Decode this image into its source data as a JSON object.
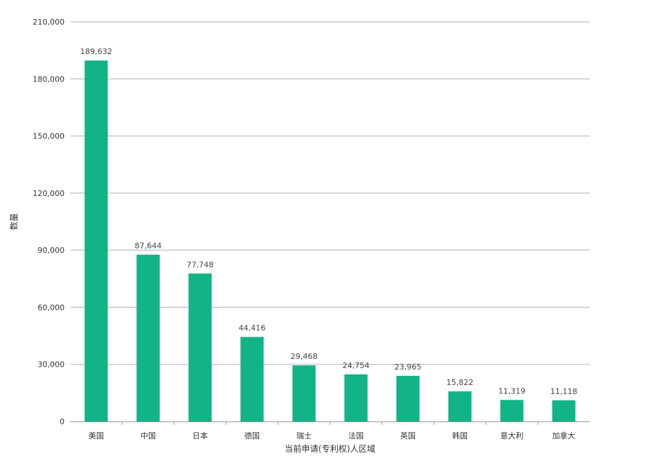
{
  "chart_data": {
    "type": "bar",
    "title": "",
    "ylabel": "数量",
    "xlabel": "当前申请(专利权)人区域",
    "ylim": [
      0,
      210000
    ],
    "yticks": [
      "0",
      "30,000",
      "60,000",
      "90,000",
      "120,000",
      "150,000",
      "180,000",
      "210,000"
    ],
    "ytick_values": [
      0,
      30000,
      60000,
      90000,
      120000,
      150000,
      180000,
      210000
    ],
    "grid": true,
    "categories": [
      "美国",
      "中国",
      "日本",
      "德国",
      "瑞士",
      "法国",
      "英国",
      "韩国",
      "意大利",
      "加拿大"
    ],
    "values": [
      189632,
      87644,
      77748,
      44416,
      29468,
      24754,
      23965,
      15822,
      11319,
      11118
    ],
    "value_labels": [
      "189,632",
      "87,644",
      "77,748",
      "44,416",
      "29,468",
      "24,754",
      "23,965",
      "15,822",
      "11,319",
      "11,118"
    ],
    "bar_color": "#12B386",
    "grid_color": "#B9A9B2",
    "axis_color": "#999999"
  }
}
